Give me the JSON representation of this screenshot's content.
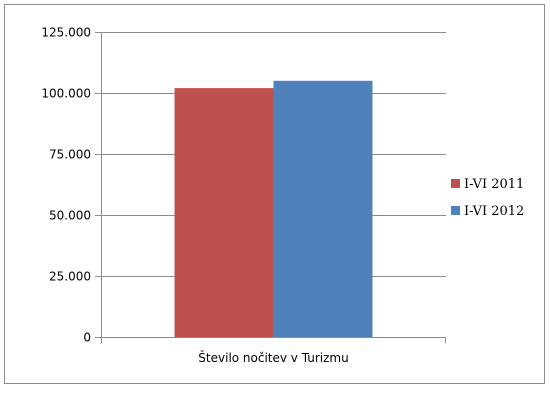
{
  "chart_data": {
    "type": "bar",
    "categories": [
      "Število nočitev v Turizmu"
    ],
    "series": [
      {
        "name": "I-VI 2011",
        "values": [
          102000
        ],
        "color": "#c0504d"
      },
      {
        "name": "I-VI 2012",
        "values": [
          105000
        ],
        "color": "#4f81bd"
      }
    ],
    "ylim": [
      0,
      125000
    ],
    "yticks": [
      0,
      25000,
      50000,
      75000,
      100000,
      125000
    ],
    "ytick_labels": [
      "0",
      "25.000",
      "50.000",
      "75.000",
      "100.000",
      "125.000"
    ],
    "grid": true,
    "legend_position": "right"
  }
}
